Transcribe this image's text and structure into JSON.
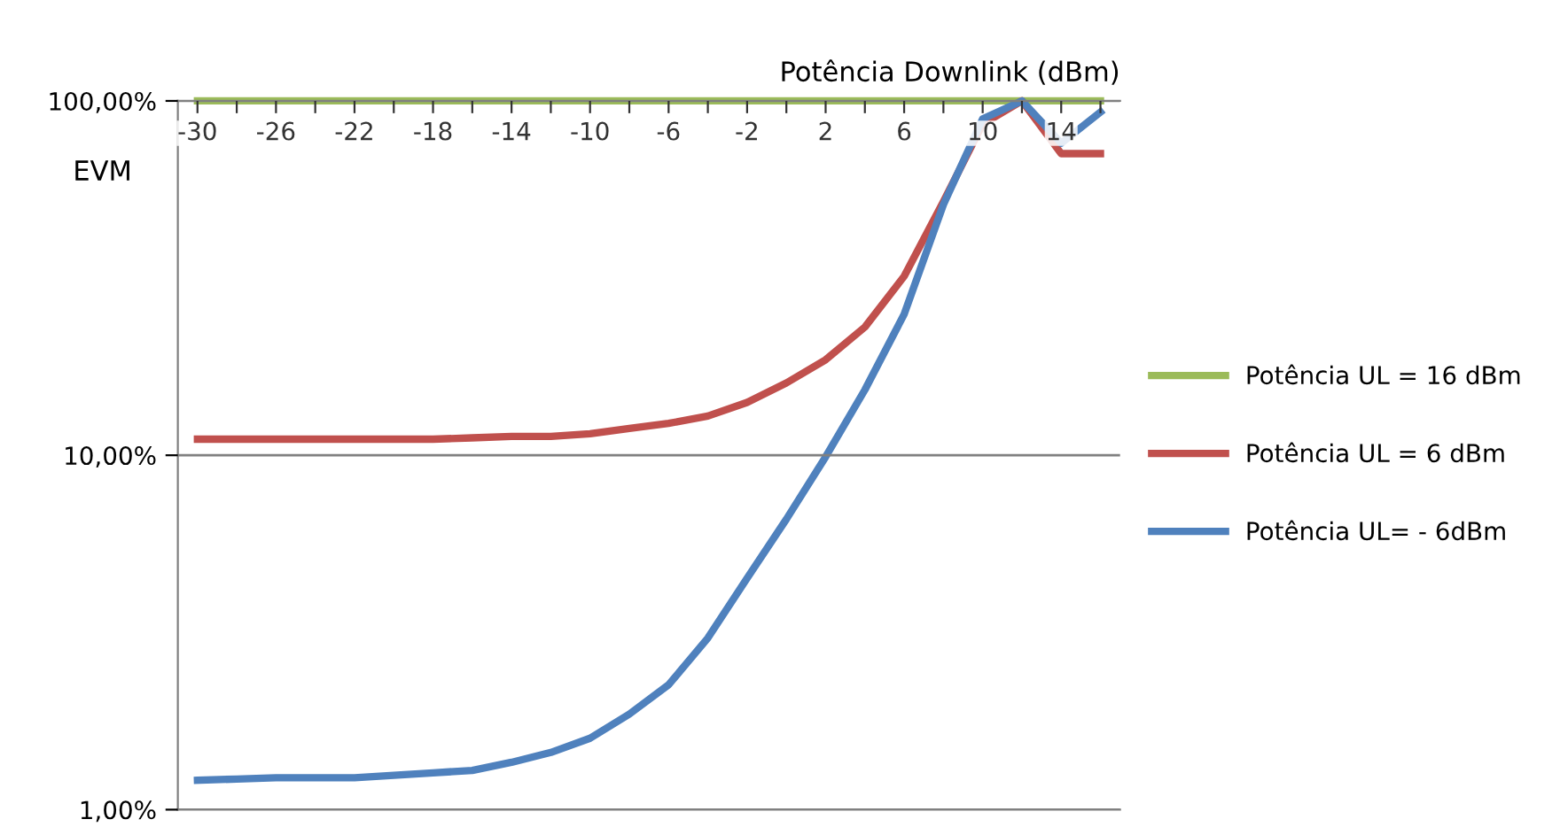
{
  "chart_data": {
    "type": "line",
    "xlabel": "Potência Downlink (dBm)",
    "ylabel": "EVM",
    "categories": [
      "-30",
      null,
      "-26",
      null,
      "-22",
      null,
      "-18",
      null,
      "-14",
      null,
      "-10",
      null,
      "-6",
      null,
      "-2",
      null,
      "2",
      null,
      "6",
      null,
      "10",
      null,
      "14",
      null
    ],
    "series": [
      {
        "name": "Potência UL = 16 dBm",
        "color": "#9bbb59",
        "values": [
          100,
          100,
          100,
          100,
          100,
          100,
          100,
          100,
          100,
          100,
          100,
          100,
          100,
          100,
          100,
          100,
          100,
          100,
          100,
          100,
          100,
          100,
          100,
          100
        ]
      },
      {
        "name": "Potência UL = 6 dBm",
        "color": "#c0504d",
        "values": [
          11.1,
          11.1,
          11.1,
          11.1,
          11.1,
          11.1,
          11.1,
          11.2,
          11.3,
          11.3,
          11.5,
          11.9,
          12.3,
          12.9,
          14.1,
          16,
          18.6,
          23,
          32,
          52,
          86,
          100,
          71,
          71
        ]
      },
      {
        "name": "Potência UL= - 6dBm",
        "color": "#4f81bd",
        "values": [
          1.21,
          1.22,
          1.23,
          1.23,
          1.23,
          1.25,
          1.27,
          1.29,
          1.36,
          1.45,
          1.59,
          1.86,
          2.25,
          3.05,
          4.5,
          6.6,
          9.9,
          15.3,
          25,
          51,
          89,
          100,
          76,
          93
        ]
      }
    ],
    "log": "y",
    "ylim": [
      1,
      100
    ],
    "yticks": [
      {
        "value": 1,
        "label": "1,00%"
      },
      {
        "value": 10,
        "label": "10,00%"
      },
      {
        "value": 100,
        "label": "100,00%"
      }
    ],
    "grid": "y",
    "legend": "right",
    "marker": "none",
    "line_style": "solid"
  }
}
